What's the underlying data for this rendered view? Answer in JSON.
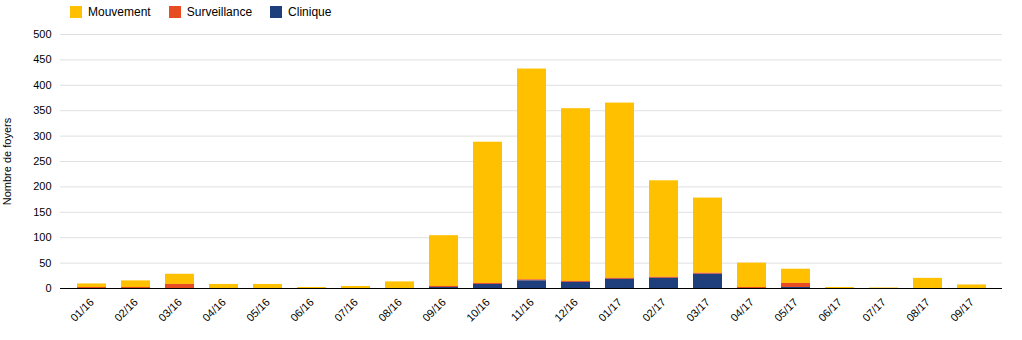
{
  "chart_data": {
    "type": "bar",
    "stacked": true,
    "categories": [
      "01/16",
      "02/16",
      "03/16",
      "04/16",
      "05/16",
      "06/16",
      "07/16",
      "08/16",
      "09/16",
      "10/16",
      "11/16",
      "12/16",
      "01/17",
      "02/17",
      "03/17",
      "04/17",
      "05/17",
      "06/17",
      "07/17",
      "08/17",
      "09/17"
    ],
    "series": [
      {
        "name": "Mouvement",
        "color": "#FFC000",
        "values": [
          7,
          13,
          20,
          8,
          8,
          2,
          4,
          13,
          100,
          278,
          415,
          340,
          345,
          190,
          148,
          48,
          28,
          2,
          1,
          20,
          7
        ]
      },
      {
        "name": "Surveillance",
        "color": "#E84C23",
        "values": [
          2,
          2,
          8,
          0,
          0,
          0,
          0,
          0,
          2,
          2,
          2,
          2,
          2,
          2,
          2,
          2,
          8,
          0,
          0,
          0,
          0
        ]
      },
      {
        "name": "Clinique",
        "color": "#1F3E7C",
        "values": [
          0,
          0,
          0,
          0,
          0,
          0,
          0,
          0,
          2,
          8,
          15,
          12,
          18,
          20,
          28,
          0,
          2,
          0,
          0,
          0,
          0
        ]
      }
    ],
    "ylabel": "Nombre de foyers",
    "ylim": [
      0,
      500
    ],
    "yticks": [
      0,
      50,
      100,
      150,
      200,
      250,
      300,
      350,
      400,
      450,
      500
    ],
    "grid": true,
    "legend": "upper left"
  }
}
